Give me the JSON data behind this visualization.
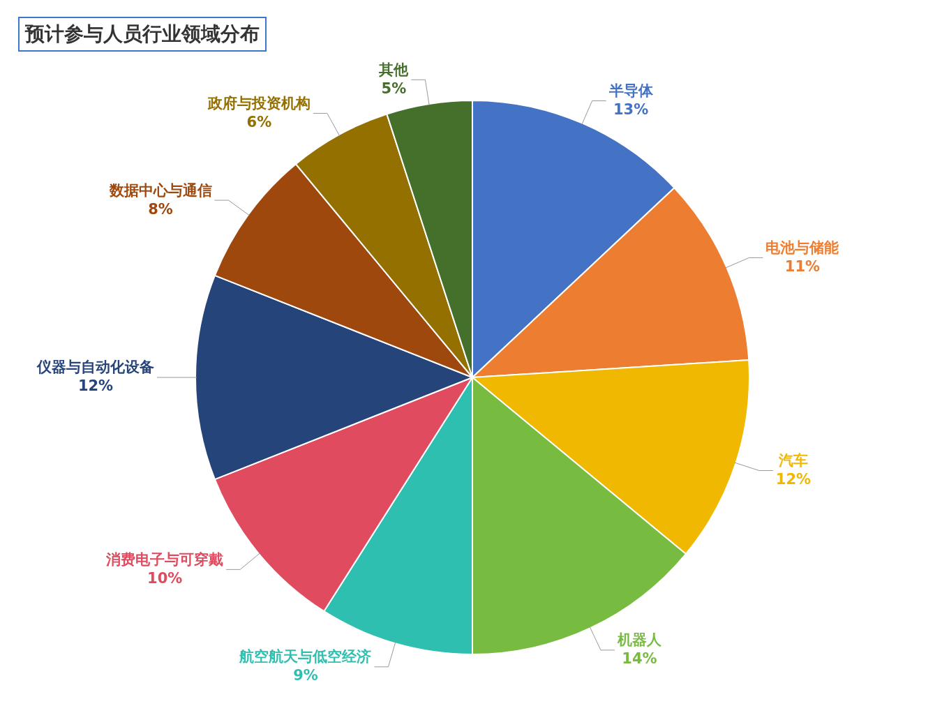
{
  "chart_data": {
    "type": "pie",
    "title": "预计参与人员行业领域分布",
    "categories": [
      "半导体",
      "电池与储能",
      "汽车",
      "机器人",
      "航空航天与低空经济",
      "消费电子与可穿戴",
      "仪器与自动化设备",
      "数据中心与通信",
      "政府与投资机构",
      "其他"
    ],
    "values": [
      13,
      11,
      12,
      14,
      9,
      10,
      12,
      8,
      6,
      5
    ],
    "value_labels": [
      "13%",
      "11%",
      "12%",
      "14%",
      "9%",
      "10%",
      "12%",
      "8%",
      "6%",
      "5%"
    ],
    "colors": [
      "#4472c4",
      "#ed7d31",
      "#f0b800",
      "#77bb41",
      "#2fbfb0",
      "#e04b5f",
      "#254479",
      "#9e480e",
      "#947000",
      "#44702b"
    ],
    "legend": false
  }
}
